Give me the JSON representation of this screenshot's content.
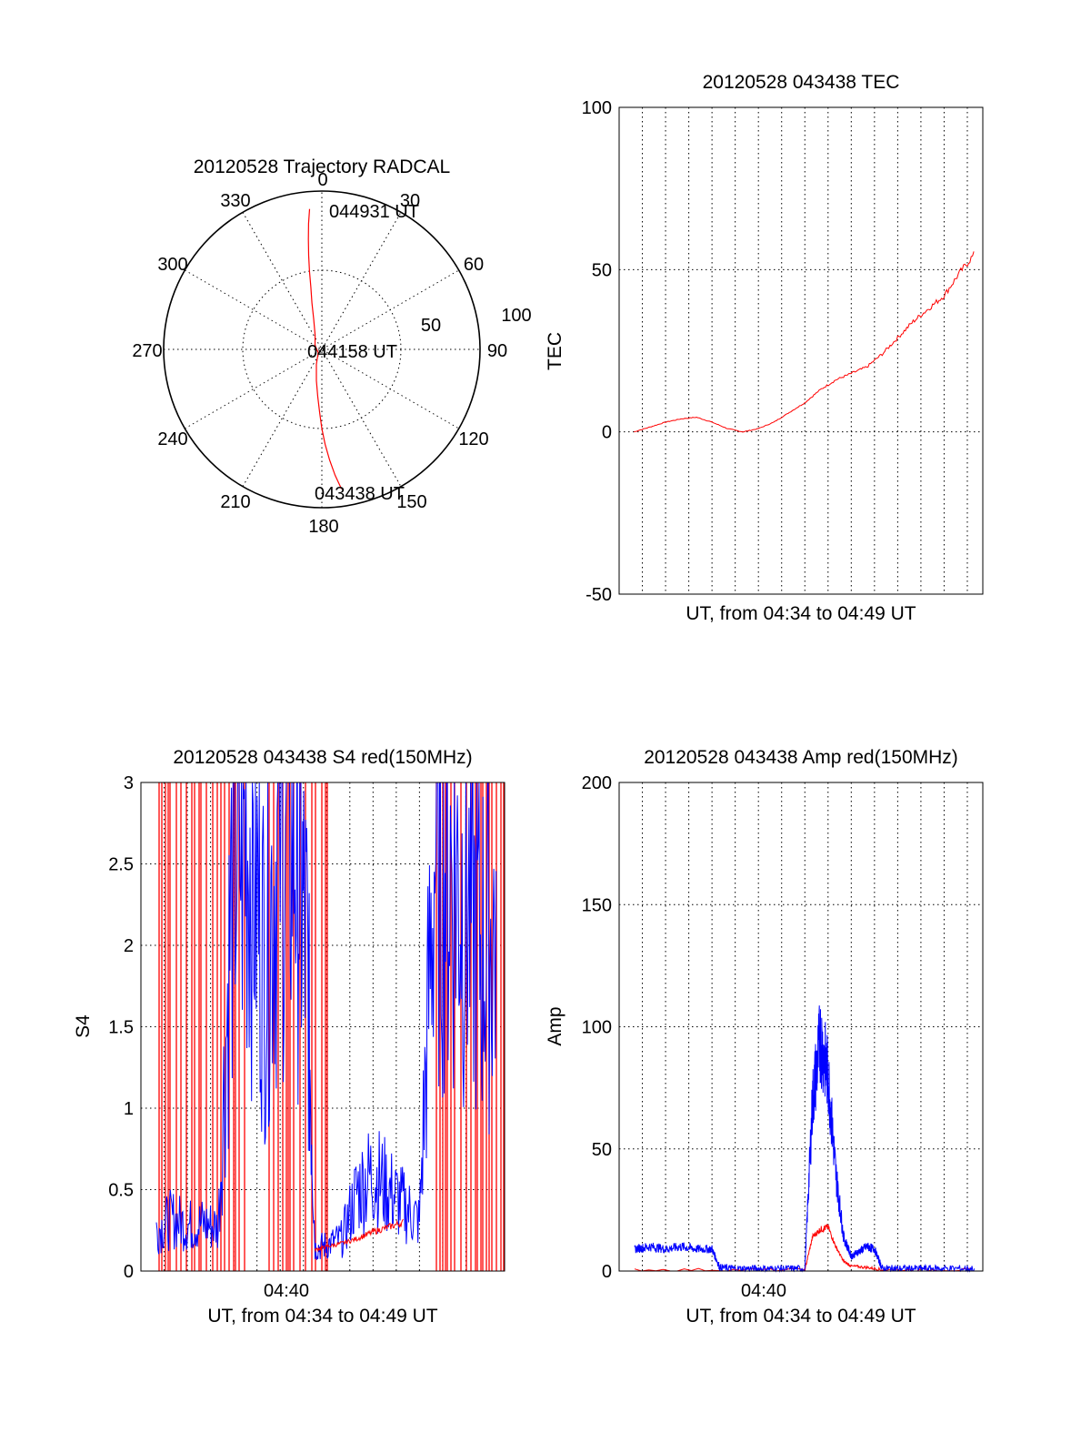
{
  "colors": {
    "red_series": "#ff0000",
    "blue_series": "#0000ff",
    "axis": "#000000",
    "background": "#ffffff"
  },
  "chart_data": [
    {
      "type": "polar",
      "title": "20120528 Trajectory RADCAL",
      "angle_ticks": [
        "0",
        "30",
        "60",
        "90",
        "120",
        "150",
        "180",
        "210",
        "240",
        "270",
        "300",
        "330"
      ],
      "radial_ticks": [
        "50",
        "100"
      ],
      "radial_range": [
        0,
        100
      ],
      "direction": "clockwise from top",
      "grid": true,
      "annotations": {
        "end": "044931 UT",
        "middle": "044158 UT",
        "start": "043438 UT"
      },
      "series": [
        {
          "color": "#ff0000",
          "points_az_zenith": [
            [
              172,
              89
            ],
            [
              174,
              80
            ],
            [
              176,
              70
            ],
            [
              178,
              60
            ],
            [
              180,
              50
            ],
            [
              182,
              40
            ],
            [
              185,
              30
            ],
            [
              190,
              20
            ],
            [
              200,
              10
            ],
            [
              230,
              3
            ],
            [
              300,
              5
            ],
            [
              335,
              10
            ],
            [
              345,
              20
            ],
            [
              348,
              30
            ],
            [
              350,
              40
            ],
            [
              351,
              50
            ],
            [
              352,
              60
            ],
            [
              353,
              70
            ],
            [
              354,
              80
            ],
            [
              355,
              89
            ]
          ]
        }
      ]
    },
    {
      "type": "line",
      "title": "20120528 043438 TEC",
      "xlabel": "UT, from 04:34 to 04:49 UT",
      "ylabel": "TEC",
      "xlim": [
        "04:34",
        "04:49"
      ],
      "ylim": [
        -50,
        100
      ],
      "yticks": [
        "-50",
        "0",
        "50",
        "100"
      ],
      "grid": true,
      "series": [
        {
          "color": "#ff0000",
          "x": [
            "04:34:38",
            "04:35:20",
            "04:36:00",
            "04:36:40",
            "04:37:20",
            "04:38:00",
            "04:38:40",
            "04:39:20",
            "04:40:00",
            "04:40:40",
            "04:41:20",
            "04:42:00",
            "04:42:40",
            "04:43:20",
            "04:44:00",
            "04:44:40",
            "04:45:20",
            "04:46:00",
            "04:46:40",
            "04:47:20",
            "04:48:00",
            "04:48:40",
            "04:49:20"
          ],
          "y": [
            0,
            1.5,
            3,
            4,
            4.5,
            3,
            1,
            0,
            1,
            3,
            6,
            9,
            13,
            16,
            18,
            20,
            24,
            29,
            34,
            38,
            42,
            49,
            55
          ]
        }
      ]
    },
    {
      "type": "line",
      "title": "20120528 043438 S4 red(150MHz)",
      "xlabel": "UT, from 04:34 to 04:49 UT",
      "ylabel": "S4",
      "xticks": [
        "04:40"
      ],
      "ylim": [
        0,
        3
      ],
      "yticks": [
        "0",
        "0.5",
        "1",
        "1.5",
        "2",
        "2.5",
        "3"
      ],
      "grid": true,
      "series": [
        {
          "color": "#0000ff",
          "x": [
            "04:34:40",
            "04:35:20",
            "04:36:00",
            "04:36:40",
            "04:37:20",
            "04:38:00",
            "04:38:40",
            "04:39:20",
            "04:40:00",
            "04:40:40",
            "04:41:10",
            "04:41:30",
            "04:42:00",
            "04:42:40",
            "04:43:20",
            "04:44:00",
            "04:44:40",
            "04:45:20",
            "04:46:00",
            "04:46:40",
            "04:47:20",
            "04:48:00",
            "04:48:40",
            "04:49:20"
          ],
          "y": [
            0.25,
            0.32,
            0.28,
            0.29,
            0.27,
            2.6,
            2.7,
            1.9,
            2.8,
            2.7,
            1.9,
            0.14,
            0.16,
            0.2,
            0.5,
            0.6,
            0.5,
            0.4,
            0.3,
            2.6,
            2.5,
            2.3,
            2.0,
            2.1
          ]
        },
        {
          "color": "#ff0000",
          "x": [
            "04:41:30",
            "04:42:00",
            "04:42:40",
            "04:43:20",
            "04:44:00",
            "04:44:40",
            "04:45:20"
          ],
          "y": [
            0.13,
            0.15,
            0.17,
            0.2,
            0.24,
            0.27,
            0.3
          ]
        }
      ]
    },
    {
      "type": "line",
      "title": "20120528 043438 Amp red(150MHz)",
      "xlabel": "UT, from 04:34 to 04:49 UT",
      "ylabel": "Amp",
      "xticks": [
        "04:40"
      ],
      "ylim": [
        0,
        200
      ],
      "yticks": [
        "0",
        "50",
        "100",
        "150",
        "200"
      ],
      "grid": true,
      "series": [
        {
          "color": "#0000ff",
          "x": [
            "04:34:40",
            "04:35:20",
            "04:36:00",
            "04:36:40",
            "04:37:20",
            "04:38:00",
            "04:38:20",
            "04:39:00",
            "04:40:00",
            "04:41:00",
            "04:42:00",
            "04:42:20",
            "04:42:40",
            "04:43:00",
            "04:43:20",
            "04:43:40",
            "04:44:00",
            "04:44:20",
            "04:44:40",
            "04:45:00",
            "04:45:20",
            "04:46:00",
            "04:47:00",
            "04:48:00",
            "04:49:20"
          ],
          "y": [
            9,
            10,
            9,
            10,
            9,
            9,
            1.5,
            1,
            1,
            1,
            1,
            70,
            95,
            80,
            40,
            14,
            6,
            8,
            10,
            9,
            1,
            1,
            1,
            1,
            1
          ]
        },
        {
          "color": "#ff0000",
          "x": [
            "04:34:40",
            "04:42:00",
            "04:42:20",
            "04:42:40",
            "04:43:00",
            "04:43:20",
            "04:43:40",
            "04:44:00",
            "04:44:40",
            "04:45:20",
            "04:49:20"
          ],
          "y": [
            0.5,
            0.5,
            14,
            17,
            18,
            10,
            4,
            2,
            1.5,
            0.5,
            0.5
          ]
        }
      ]
    }
  ]
}
